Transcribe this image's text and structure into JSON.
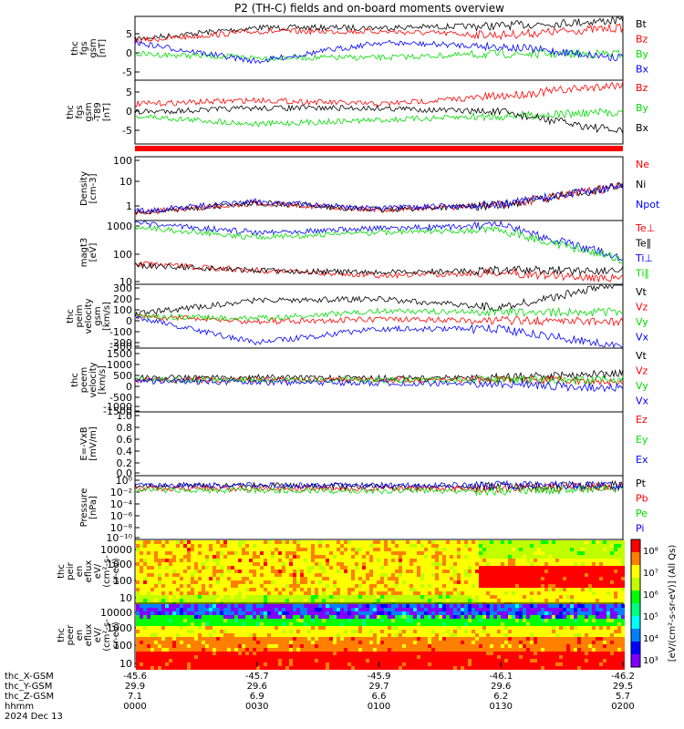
{
  "title": "P2 (TH-C) fields and on-board moments overview",
  "panels": [
    {
      "id": "fgs_gsm",
      "ylabel": [
        "thc",
        "fgs",
        "gsm",
        "[nT]"
      ],
      "ticks": [
        "5",
        "0",
        "-5"
      ],
      "legend": [
        {
          "t": "Bt",
          "c": "#000000"
        },
        {
          "t": "Bz",
          "c": "#ff0000"
        },
        {
          "t": "By",
          "c": "#00dd00"
        },
        {
          "t": "Bx",
          "c": "#0000ff"
        }
      ]
    },
    {
      "id": "fgs_gsm_t89",
      "ylabel": [
        "thc",
        "fgs",
        "gsm",
        "-T89",
        "[nT]"
      ],
      "ticks": [
        "5",
        "0",
        "-5"
      ],
      "legend": [
        {
          "t": "Bz",
          "c": "#ff0000"
        },
        {
          "t": "By",
          "c": "#00dd00"
        },
        {
          "t": "Bx",
          "c": "#000000"
        }
      ]
    },
    {
      "id": "density",
      "ylabel": [
        "Density",
        "[cm-3]"
      ],
      "ticks": [
        "100",
        "10",
        "1"
      ],
      "legend": [
        {
          "t": "Ne",
          "c": "#ff0000"
        },
        {
          "t": "Ni",
          "c": "#000000"
        },
        {
          "t": "Npot",
          "c": "#0000ff"
        }
      ]
    },
    {
      "id": "temperature",
      "ylabel": [
        "magt3",
        "[eV]"
      ],
      "ticks": [
        "1000",
        "100",
        "10"
      ],
      "legend": [
        {
          "t": "Te⊥",
          "c": "#ff0000"
        },
        {
          "t": "Te∥",
          "c": "#000000"
        },
        {
          "t": "Ti⊥",
          "c": "#0000ff"
        },
        {
          "t": "Ti∥",
          "c": "#00dd00"
        }
      ]
    },
    {
      "id": "peim_velocity",
      "ylabel": [
        "thc",
        "peim",
        "velocity",
        "gsm",
        "[km/s]"
      ],
      "ticks": [
        "300",
        "200",
        "100",
        "0",
        "-100",
        "-200",
        "-300"
      ],
      "legend": [
        {
          "t": "Vt",
          "c": "#000000"
        },
        {
          "t": "Vz",
          "c": "#ff0000"
        },
        {
          "t": "Vy",
          "c": "#00dd00"
        },
        {
          "t": "Vx",
          "c": "#0000ff"
        }
      ]
    },
    {
      "id": "peem_velocity",
      "ylabel": [
        "thc",
        "peem",
        "velocity",
        "[km/s]"
      ],
      "ticks": [
        "1500",
        "1000",
        "500",
        "0",
        "-500",
        "-1000",
        "-1500"
      ],
      "legend": [
        {
          "t": "Vt",
          "c": "#000000"
        },
        {
          "t": "Vz",
          "c": "#ff0000"
        },
        {
          "t": "Vy",
          "c": "#00dd00"
        },
        {
          "t": "Vx",
          "c": "#0000ff"
        }
      ]
    },
    {
      "id": "efield",
      "ylabel": [
        "E=-VxB",
        "[mV/m]"
      ],
      "ticks": [
        "1.0",
        "0.8",
        "0.6",
        "0.4",
        "0.2",
        "0.0"
      ],
      "legend": [
        {
          "t": "Ez",
          "c": "#ff0000"
        },
        {
          "t": "Ey",
          "c": "#00dd00"
        },
        {
          "t": "Ex",
          "c": "#0000ff"
        }
      ]
    },
    {
      "id": "pressure",
      "ylabel": [
        "Pressure",
        "[nPa]"
      ],
      "ticks": [
        "10⁰",
        "10⁻²",
        "10⁻⁴",
        "10⁻⁶",
        "10⁻⁸",
        "10⁻¹⁰"
      ],
      "legend": [
        {
          "t": "Pt",
          "c": "#000000"
        },
        {
          "t": "Pb",
          "c": "#ff0000"
        },
        {
          "t": "Pe",
          "c": "#00dd00"
        },
        {
          "t": "Pi",
          "c": "#0000ff"
        }
      ]
    },
    {
      "id": "peir_spec",
      "ylabel": [
        "thc",
        "peir",
        "en",
        "eflux",
        "eV/",
        "(cm²-s-",
        "sr-eV)"
      ],
      "ticks": [
        "10000",
        "1000",
        "100",
        "10"
      ],
      "legend": []
    },
    {
      "id": "peer_spec",
      "ylabel": [
        "thc",
        "peer",
        "en",
        "eflux",
        "eV/",
        "(cm²-s-",
        "sr-eV)"
      ],
      "ticks": [
        "10000",
        "1000",
        "100",
        "10"
      ],
      "legend": []
    }
  ],
  "colorbar": {
    "label": "[eV/(cm²-s-sr-eV)] (All Qs)",
    "ticks": [
      "10⁸",
      "10⁷",
      "10⁶",
      "10⁵",
      "10⁴",
      "10³"
    ],
    "colors": [
      "#7f00ff",
      "#0000ff",
      "#0080ff",
      "#00ffff",
      "#00ff80",
      "#00ff00",
      "#c0ff00",
      "#ffff00",
      "#ff8000",
      "#ff0000"
    ]
  },
  "xaxis": {
    "ticks": [
      "0000",
      "0030",
      "0100",
      "0130",
      "0200"
    ],
    "row_labels": [
      "thc_X-GSM",
      "thc_Y-GSM",
      "thc_Z-GSM",
      "hhmm",
      "2024 Dec 13"
    ],
    "rows": [
      [
        "-45.6",
        "-45.7",
        "-45.9",
        "-46.1",
        "-46.2"
      ],
      [
        "29.9",
        "29.6",
        "29.7",
        "29.6",
        "29.5"
      ],
      [
        "7.1",
        "6.9",
        "6.6",
        "6.2",
        "5.7"
      ]
    ]
  },
  "chart_data": [
    {
      "type": "line",
      "title": "P2 (TH-C) fields and on-board moments overview",
      "xlabel": "hhmm",
      "categories": [
        "0000",
        "0030",
        "0100",
        "0130",
        "0200"
      ],
      "ylim": [
        -8,
        9
      ],
      "series": [
        {
          "name": "Bt",
          "values": [
            3,
            6,
            6,
            6.5,
            8
          ]
        },
        {
          "name": "Bz",
          "values": [
            2.5,
            5,
            5,
            4,
            6
          ]
        },
        {
          "name": "By",
          "values": [
            -1,
            -2,
            -2,
            -1,
            -1
          ]
        },
        {
          "name": "Bx",
          "values": [
            2,
            -3,
            2,
            1,
            -2
          ]
        }
      ]
    },
    {
      "type": "line",
      "ylim": [
        -8,
        8
      ],
      "series": [
        {
          "name": "Bz",
          "values": [
            2,
            3,
            2,
            4,
            7
          ]
        },
        {
          "name": "By",
          "values": [
            -1,
            -3,
            -2,
            -1,
            0
          ]
        },
        {
          "name": "Bx",
          "values": [
            0,
            1,
            1,
            0,
            -5
          ]
        }
      ]
    },
    {
      "type": "line",
      "ylim": [
        0.3,
        100
      ],
      "log": true,
      "series": [
        {
          "name": "Ne",
          "values": [
            0.6,
            1.5,
            0.8,
            1.2,
            7
          ]
        },
        {
          "name": "Ni",
          "values": [
            0.6,
            1.5,
            0.8,
            1.2,
            7
          ]
        },
        {
          "name": "Npot",
          "values": [
            0.7,
            1.7,
            0.9,
            1.3,
            7
          ]
        }
      ]
    },
    {
      "type": "line",
      "ylim": [
        10,
        1500
      ],
      "log": true,
      "series": [
        {
          "name": "Te⊥",
          "values": [
            50,
            30,
            20,
            25,
            15
          ]
        },
        {
          "name": "Te∥",
          "values": [
            45,
            30,
            25,
            30,
            30
          ]
        },
        {
          "name": "Ti⊥",
          "values": [
            1200,
            600,
            800,
            1000,
            80
          ]
        },
        {
          "name": "Ti∥",
          "values": [
            900,
            400,
            600,
            700,
            70
          ]
        }
      ]
    },
    {
      "type": "line",
      "ylim": [
        -300,
        300
      ],
      "series": [
        {
          "name": "Vt",
          "values": [
            20,
            150,
            160,
            80,
            310
          ]
        },
        {
          "name": "Vz",
          "values": [
            0,
            -50,
            -30,
            -40,
            -50
          ]
        },
        {
          "name": "Vy",
          "values": [
            0,
            -20,
            50,
            40,
            40
          ]
        },
        {
          "name": "Vx",
          "values": [
            -10,
            -250,
            -120,
            -120,
            -290
          ]
        }
      ]
    },
    {
      "type": "line",
      "ylim": [
        -1500,
        1500
      ],
      "series": [
        {
          "name": "Vt",
          "values": [
            100,
            120,
            100,
            100,
            300
          ]
        },
        {
          "name": "Vz",
          "values": [
            0,
            0,
            0,
            0,
            -50
          ]
        },
        {
          "name": "Vy",
          "values": [
            0,
            0,
            0,
            0,
            0
          ]
        },
        {
          "name": "Vx",
          "values": [
            -50,
            -100,
            -150,
            -200,
            -400
          ]
        }
      ]
    },
    {
      "type": "line",
      "ylim": [
        0,
        1
      ],
      "series": [
        {
          "name": "Ez",
          "values": []
        },
        {
          "name": "Ey",
          "values": []
        },
        {
          "name": "Ex",
          "values": []
        }
      ]
    },
    {
      "type": "line",
      "ylim": [
        1e-10,
        1
      ],
      "log": true,
      "series": [
        {
          "name": "Pt",
          "values": [
            0.02,
            0.03,
            0.02,
            0.02,
            0.03
          ]
        },
        {
          "name": "Pb",
          "values": [
            0.01,
            0.01,
            0.01,
            0.01,
            0.02
          ]
        },
        {
          "name": "Pe",
          "values": [
            0.005,
            0.005,
            0.004,
            0.004,
            0.008
          ]
        },
        {
          "name": "Pi",
          "values": [
            0.03,
            0.03,
            0.03,
            0.03,
            0.03
          ]
        }
      ]
    },
    {
      "type": "heatmap",
      "ylim": [
        10,
        10000
      ],
      "log": true
    },
    {
      "type": "heatmap",
      "ylim": [
        10,
        10000
      ],
      "log": true
    }
  ]
}
